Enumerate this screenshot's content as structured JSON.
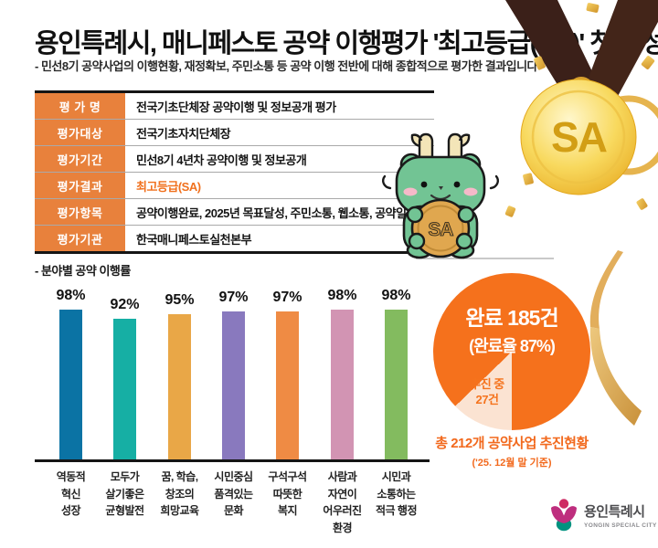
{
  "theme": {
    "table_label_bg": "#E8813C",
    "highlight_text": "#F0701D",
    "pie_orange": "#F5711C",
    "pie_wedge": "#FBE3D2",
    "wedge_text": "#F5731D",
    "caption_orange": "#F2691D",
    "ribbon_brown": "#3B2019",
    "medal_gold": "#F6D355",
    "mascot_green": "#72C494"
  },
  "header": {
    "title": "용인특례시, 매니페스토 공약 이행평가 '최고등급(SA)' 첫 달성",
    "subtitle": "- 민선8기 공약사업의 이행현황, 재정확보, 주민소통 등 공약 이행 전반에 대해 종합적으로 평가한 결과입니다"
  },
  "table": {
    "rows": [
      {
        "label": "평 가 명",
        "value": "전국기초단체장 공약이행 및 정보공개 평가",
        "highlight": false
      },
      {
        "label": "평가대상",
        "value": "전국기초자치단체장",
        "highlight": false
      },
      {
        "label": "평가기간",
        "value": "민선8기 4년차 공약이행 및 정보공개",
        "highlight": false
      },
      {
        "label": "평가결과",
        "value": "최고등급(SA)",
        "highlight": true
      },
      {
        "label": "평가항목",
        "value": "공약이행완료, 2025년 목표달성, 주민소통, 웹소통, 공약일치도",
        "highlight": false
      },
      {
        "label": "평가기관",
        "value": "한국매니페스토실천본부",
        "highlight": false
      }
    ]
  },
  "medal": {
    "grade": "SA"
  },
  "mascot": {
    "coin_text": "SA"
  },
  "chart_data": [
    {
      "type": "bar",
      "title": "- 분야별 공약 이행률",
      "categories": [
        "역동적\n혁신\n성장",
        "모두가\n살기좋은\n균형발전",
        "꿈, 학습,\n창조의\n희망교육",
        "시민중심\n품격있는\n문화",
        "구석구석\n따뜻한\n복지",
        "사람과\n자연이\n어우러진\n환경",
        "시민과\n소통하는\n적극 행정"
      ],
      "values": [
        98,
        92,
        95,
        97,
        97,
        98,
        98
      ],
      "value_labels": [
        "98%",
        "92%",
        "95%",
        "97%",
        "97%",
        "98%",
        "98%"
      ],
      "colors": [
        "#0B73A4",
        "#16AFA4",
        "#E9A747",
        "#8979BE",
        "#EF8B44",
        "#D294B3",
        "#83BB5F"
      ],
      "unit": "%",
      "ylim": [
        0,
        100
      ],
      "grid": false,
      "legend": "none"
    },
    {
      "type": "pie",
      "title": "총 212개 공약사업 추진현황",
      "subtitle": "('25. 12월 말 기준)",
      "total": 212,
      "slices": [
        {
          "label": "완료",
          "count": 185,
          "pct": 87,
          "color": "#F5711C"
        },
        {
          "label": "추진 중",
          "count": 27,
          "pct": 13,
          "color": "#FBE3D2"
        }
      ],
      "center_label": "완료 185건",
      "center_sublabel": "(완료율 87%)",
      "wedge_label": "추진 중\n27건",
      "wedge_start_deg": 180,
      "wedge_sweep_deg": 46
    }
  ],
  "footer_logo": {
    "name": "용인특례시",
    "subname": "YONGIN SPECIAL CITY"
  }
}
